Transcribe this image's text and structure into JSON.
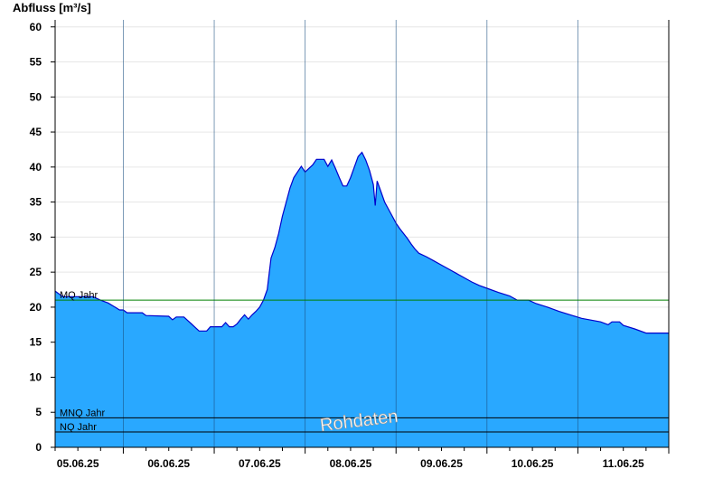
{
  "chart_data": {
    "type": "area",
    "title": "",
    "xlabel": "",
    "ylabel": "Abfluss [m³/s]",
    "ylim": [
      0,
      61
    ],
    "yticks": [
      0,
      5,
      10,
      15,
      20,
      25,
      30,
      35,
      40,
      45,
      50,
      55,
      60
    ],
    "grid": true,
    "x_day_labels": [
      "05.06.25",
      "06.06.25",
      "07.06.25",
      "08.06.25",
      "09.06.25",
      "10.06.25",
      "11.06.25"
    ],
    "x_day_separators": [
      "05.06.25 12:00",
      "06.06.25 12:00",
      "07.06.25 12:00",
      "08.06.25 12:00",
      "09.06.25 12:00",
      "10.06.25 12:00"
    ],
    "x_range": [
      "04.06.25 18:00",
      "11.06.25 12:00"
    ],
    "series": [
      {
        "name": "",
        "color": "#29a8ff",
        "line_color": "#0000cc",
        "points": [
          [
            "04.06.25 18:00",
            22.3
          ],
          [
            "04.06.25 19:00",
            21.9
          ],
          [
            "04.06.25 20:00",
            21.5
          ],
          [
            "05.06.25 04:00",
            21.5
          ],
          [
            "05.06.25 06:00",
            21.0
          ],
          [
            "05.06.25 08:00",
            20.6
          ],
          [
            "05.06.25 09:30",
            20.1
          ],
          [
            "05.06.25 11:00",
            19.6
          ],
          [
            "05.06.25 12:00",
            19.6
          ],
          [
            "05.06.25 13:00",
            19.2
          ],
          [
            "05.06.25 17:00",
            19.2
          ],
          [
            "05.06.25 18:00",
            18.8
          ],
          [
            "06.06.25 00:00",
            18.7
          ],
          [
            "06.06.25 01:00",
            18.2
          ],
          [
            "06.06.25 02:00",
            18.6
          ],
          [
            "06.06.25 04:00",
            18.6
          ],
          [
            "06.06.25 05:00",
            18.1
          ],
          [
            "06.06.25 06:00",
            17.6
          ],
          [
            "06.06.25 07:00",
            17.1
          ],
          [
            "06.06.25 08:00",
            16.6
          ],
          [
            "06.06.25 10:00",
            16.6
          ],
          [
            "06.06.25 11:00",
            17.2
          ],
          [
            "06.06.25 14:00",
            17.2
          ],
          [
            "06.06.25 15:00",
            17.8
          ],
          [
            "06.06.25 16:00",
            17.2
          ],
          [
            "06.06.25 17:00",
            17.2
          ],
          [
            "06.06.25 18:00",
            17.6
          ],
          [
            "06.06.25 19:00",
            18.3
          ],
          [
            "06.06.25 20:00",
            18.9
          ],
          [
            "06.06.25 21:00",
            18.3
          ],
          [
            "06.06.25 22:00",
            18.9
          ],
          [
            "06.06.25 23:00",
            19.4
          ],
          [
            "07.06.25 00:00",
            20.0
          ],
          [
            "07.06.25 01:00",
            21.0
          ],
          [
            "07.06.25 02:00",
            22.5
          ],
          [
            "07.06.25 03:00",
            27.0
          ],
          [
            "07.06.25 04:00",
            28.5
          ],
          [
            "07.06.25 05:00",
            30.5
          ],
          [
            "07.06.25 06:00",
            33.0
          ],
          [
            "07.06.25 07:00",
            35.0
          ],
          [
            "07.06.25 08:00",
            37.0
          ],
          [
            "07.06.25 09:00",
            38.5
          ],
          [
            "07.06.25 10:00",
            39.3
          ],
          [
            "07.06.25 11:00",
            40.1
          ],
          [
            "07.06.25 12:00",
            39.3
          ],
          [
            "07.06.25 14:00",
            40.3
          ],
          [
            "07.06.25 15:00",
            41.1
          ],
          [
            "07.06.25 17:00",
            41.1
          ],
          [
            "07.06.25 18:00",
            40.1
          ],
          [
            "07.06.25 19:00",
            41.0
          ],
          [
            "07.06.25 20:00",
            39.8
          ],
          [
            "07.06.25 21:00",
            38.5
          ],
          [
            "07.06.25 22:00",
            37.3
          ],
          [
            "07.06.25 23:00",
            37.3
          ],
          [
            "08.06.25 00:00",
            38.5
          ],
          [
            "08.06.25 01:00",
            40.0
          ],
          [
            "08.06.25 02:00",
            41.5
          ],
          [
            "08.06.25 03:00",
            42.1
          ],
          [
            "08.06.25 04:00",
            41.0
          ],
          [
            "08.06.25 05:00",
            39.5
          ],
          [
            "08.06.25 06:00",
            37.5
          ],
          [
            "08.06.25 06:30",
            34.5
          ],
          [
            "08.06.25 07:00",
            38.0
          ],
          [
            "08.06.25 08:00",
            36.5
          ],
          [
            "08.06.25 09:00",
            35.0
          ],
          [
            "08.06.25 10:00",
            34.0
          ],
          [
            "08.06.25 11:00",
            33.0
          ],
          [
            "08.06.25 12:00",
            32.0
          ],
          [
            "08.06.25 13:00",
            31.2
          ],
          [
            "08.06.25 14:00",
            30.5
          ],
          [
            "08.06.25 15:00",
            29.8
          ],
          [
            "08.06.25 16:00",
            29.0
          ],
          [
            "08.06.25 17:00",
            28.3
          ],
          [
            "08.06.25 18:00",
            27.7
          ],
          [
            "08.06.25 20:00",
            27.2
          ],
          [
            "08.06.25 22:00",
            26.6
          ],
          [
            "09.06.25 00:00",
            26.0
          ],
          [
            "09.06.25 02:00",
            25.4
          ],
          [
            "09.06.25 04:00",
            24.8
          ],
          [
            "09.06.25 06:00",
            24.2
          ],
          [
            "09.06.25 08:00",
            23.6
          ],
          [
            "09.06.25 10:00",
            23.1
          ],
          [
            "09.06.25 12:00",
            22.7
          ],
          [
            "09.06.25 15:00",
            22.1
          ],
          [
            "09.06.25 18:00",
            21.6
          ],
          [
            "09.06.25 20:00",
            21.0
          ],
          [
            "09.06.25 23:00",
            21.0
          ],
          [
            "10.06.25 01:00",
            20.5
          ],
          [
            "10.06.25 04:00",
            20.0
          ],
          [
            "10.06.25 07:00",
            19.4
          ],
          [
            "10.06.25 10:00",
            18.9
          ],
          [
            "10.06.25 13:00",
            18.4
          ],
          [
            "10.06.25 18:00",
            17.9
          ],
          [
            "10.06.25 20:00",
            17.5
          ],
          [
            "10.06.25 21:00",
            17.9
          ],
          [
            "10.06.25 23:00",
            17.9
          ],
          [
            "11.06.25 00:00",
            17.4
          ],
          [
            "11.06.25 03:00",
            16.9
          ],
          [
            "11.06.25 06:00",
            16.3
          ],
          [
            "11.06.25 12:00",
            16.3
          ]
        ]
      }
    ],
    "reference_lines": [
      {
        "label": "MQ Jahr",
        "value": 21.0,
        "color": "#008000"
      },
      {
        "label": "MNQ Jahr",
        "value": 4.2,
        "color": "#000000"
      },
      {
        "label": "NQ Jahr",
        "value": 2.2,
        "color": "#000000"
      }
    ],
    "watermark": "Rohdaten"
  }
}
